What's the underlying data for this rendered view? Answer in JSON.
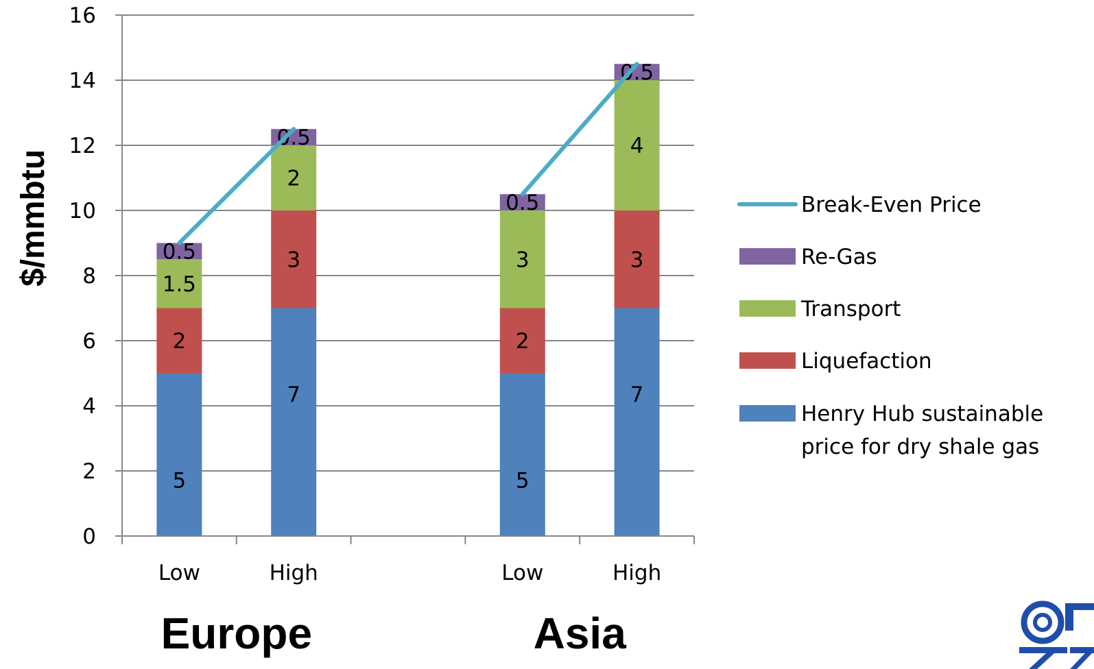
{
  "chart_data": {
    "type": "bar",
    "stacked": true,
    "ylabel": "$/mmbtu",
    "ylim": [
      0,
      16
    ],
    "yticks": [
      0,
      2,
      4,
      6,
      8,
      10,
      12,
      14,
      16
    ],
    "grid": true,
    "legend_position": "right",
    "groups": [
      "Europe",
      "Asia"
    ],
    "categories": [
      "Low",
      "High",
      "Low",
      "High"
    ],
    "category_group": [
      0,
      0,
      1,
      1
    ],
    "series": [
      {
        "name": "Henry Hub sustainable price for dry shale gas",
        "legend_lines": [
          "Henry Hub sustainable",
          "price for dry shale gas"
        ],
        "color": "#4F81BD",
        "values": [
          5,
          7,
          5,
          7
        ],
        "labels": [
          "5",
          "7",
          "5",
          "7"
        ]
      },
      {
        "name": "Liquefaction",
        "legend_lines": [
          "Liquefaction"
        ],
        "color": "#C0504D",
        "values": [
          2,
          3,
          2,
          3
        ],
        "labels": [
          "2",
          "3",
          "2",
          "3"
        ]
      },
      {
        "name": "Transport",
        "legend_lines": [
          "Transport"
        ],
        "color": "#9BBB59",
        "values": [
          1.5,
          2,
          3,
          4
        ],
        "labels": [
          "1.5",
          "2",
          "3",
          "4"
        ]
      },
      {
        "name": "Re-Gas",
        "legend_lines": [
          "Re-Gas"
        ],
        "color": "#8064A2",
        "values": [
          0.5,
          0.5,
          0.5,
          0.5
        ],
        "labels": [
          "0.5",
          "0.5",
          "0.5",
          "0.5"
        ]
      }
    ],
    "line_series": [
      {
        "name": "Break-Even Price",
        "legend_lines": [
          "Break-Even Price"
        ],
        "color": "#4BACC6",
        "segments": [
          [
            0,
            1
          ],
          [
            2,
            3
          ]
        ],
        "values": [
          9,
          12.5,
          10.5,
          14.5
        ]
      }
    ]
  }
}
